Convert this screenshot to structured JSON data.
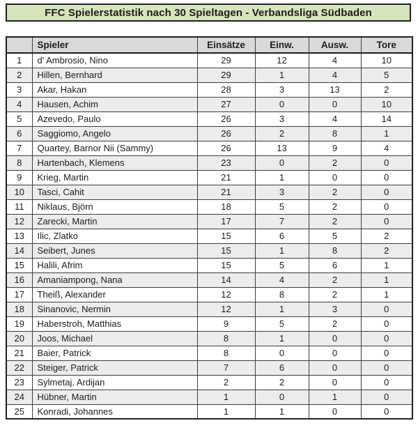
{
  "title_bar": {
    "text": "FFC Spielerstatistik nach 30 Spieltagen - Verbandsliga Südbaden"
  },
  "colors": {
    "title_bg": "#d8e4bc",
    "header_bg": "#d9d9d9",
    "alt_row_bg": "#ececec",
    "border_dark": "#1f1f1f",
    "grid_line": "#3d3d3d"
  },
  "table": {
    "headers": {
      "rank": "",
      "player": "Spieler",
      "appearances": "Einsätze",
      "sub_in": "Einw.",
      "sub_out": "Ausw.",
      "goals": "Tore"
    },
    "rows": [
      {
        "rank": "1",
        "player": "d' Ambrosio, Nino",
        "appearances": "29",
        "sub_in": "12",
        "sub_out": "4",
        "goals": "10"
      },
      {
        "rank": "2",
        "player": "Hillen, Bernhard",
        "appearances": "29",
        "sub_in": "1",
        "sub_out": "4",
        "goals": "5"
      },
      {
        "rank": "3",
        "player": "Akar, Hakan",
        "appearances": "28",
        "sub_in": "3",
        "sub_out": "13",
        "goals": "2"
      },
      {
        "rank": "4",
        "player": "Hausen, Achim",
        "appearances": "27",
        "sub_in": "0",
        "sub_out": "0",
        "goals": "10"
      },
      {
        "rank": "5",
        "player": "Azevedo, Paulo",
        "appearances": "26",
        "sub_in": "3",
        "sub_out": "4",
        "goals": "14"
      },
      {
        "rank": "6",
        "player": "Saggiomo, Angelo",
        "appearances": "26",
        "sub_in": "2",
        "sub_out": "8",
        "goals": "1"
      },
      {
        "rank": "7",
        "player": "Quartey, Barnor Nii (Sammy)",
        "appearances": "26",
        "sub_in": "13",
        "sub_out": "9",
        "goals": "4"
      },
      {
        "rank": "8",
        "player": "Hartenbach, Klemens",
        "appearances": "23",
        "sub_in": "0",
        "sub_out": "2",
        "goals": "0"
      },
      {
        "rank": "9",
        "player": "Krieg, Martin",
        "appearances": "21",
        "sub_in": "1",
        "sub_out": "0",
        "goals": "0"
      },
      {
        "rank": "10",
        "player": "Tasci, Cahit",
        "appearances": "21",
        "sub_in": "3",
        "sub_out": "2",
        "goals": "0"
      },
      {
        "rank": "11",
        "player": "Niklaus, Björn",
        "appearances": "18",
        "sub_in": "5",
        "sub_out": "2",
        "goals": "0"
      },
      {
        "rank": "12",
        "player": "Zarecki, Martin",
        "appearances": "17",
        "sub_in": "7",
        "sub_out": "2",
        "goals": "0"
      },
      {
        "rank": "13",
        "player": "Ilic, Zlatko",
        "appearances": "15",
        "sub_in": "6",
        "sub_out": "5",
        "goals": "2"
      },
      {
        "rank": "14",
        "player": "Seibert, Junes",
        "appearances": "15",
        "sub_in": "1",
        "sub_out": "8",
        "goals": "2"
      },
      {
        "rank": "15",
        "player": "Halili, Afrim",
        "appearances": "15",
        "sub_in": "5",
        "sub_out": "6",
        "goals": "1"
      },
      {
        "rank": "16",
        "player": "Amaniampong, Nana",
        "appearances": "14",
        "sub_in": "4",
        "sub_out": "2",
        "goals": "1"
      },
      {
        "rank": "17",
        "player": "Theiß, Alexander",
        "appearances": "12",
        "sub_in": "8",
        "sub_out": "2",
        "goals": "1"
      },
      {
        "rank": "18",
        "player": "Sinanovic, Nermin",
        "appearances": "12",
        "sub_in": "1",
        "sub_out": "3",
        "goals": "0"
      },
      {
        "rank": "19",
        "player": "Haberstroh, Matthias",
        "appearances": "9",
        "sub_in": "5",
        "sub_out": "2",
        "goals": "0"
      },
      {
        "rank": "20",
        "player": "Joos, Michael",
        "appearances": "8",
        "sub_in": "1",
        "sub_out": "0",
        "goals": "0"
      },
      {
        "rank": "21",
        "player": "Baier, Patrick",
        "appearances": "8",
        "sub_in": "0",
        "sub_out": "0",
        "goals": "0"
      },
      {
        "rank": "22",
        "player": "Steiger, Patrick",
        "appearances": "7",
        "sub_in": "6",
        "sub_out": "0",
        "goals": "0"
      },
      {
        "rank": "23",
        "player": "Sylmetaj, Ardijan",
        "appearances": "2",
        "sub_in": "2",
        "sub_out": "0",
        "goals": "0"
      },
      {
        "rank": "24",
        "player": "Hübner, Martin",
        "appearances": "1",
        "sub_in": "0",
        "sub_out": "1",
        "goals": "0"
      },
      {
        "rank": "25",
        "player": "Konradi, Johannes",
        "appearances": "1",
        "sub_in": "1",
        "sub_out": "0",
        "goals": "0"
      }
    ]
  }
}
